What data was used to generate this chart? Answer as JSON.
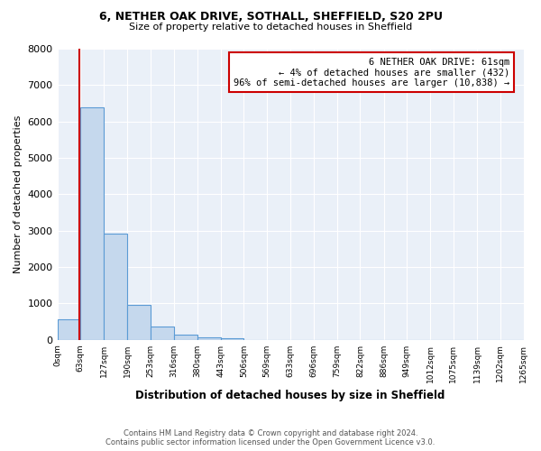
{
  "title": "6, NETHER OAK DRIVE, SOTHALL, SHEFFIELD, S20 2PU",
  "subtitle": "Size of property relative to detached houses in Sheffield",
  "xlabel": "Distribution of detached houses by size in Sheffield",
  "ylabel": "Number of detached properties",
  "bin_edges": [
    0,
    63,
    127,
    190,
    253,
    316,
    380,
    443,
    506,
    569,
    633,
    696,
    759,
    822,
    886,
    949,
    1012,
    1075,
    1139,
    1202,
    1265
  ],
  "bin_labels": [
    "0sqm",
    "63sqm",
    "127sqm",
    "190sqm",
    "253sqm",
    "316sqm",
    "380sqm",
    "443sqm",
    "506sqm",
    "569sqm",
    "633sqm",
    "696sqm",
    "759sqm",
    "822sqm",
    "886sqm",
    "949sqm",
    "1012sqm",
    "1075sqm",
    "1139sqm",
    "1202sqm",
    "1265sqm"
  ],
  "bar_values": [
    550,
    6400,
    2920,
    970,
    370,
    150,
    75,
    50,
    0,
    0,
    0,
    0,
    0,
    0,
    0,
    0,
    0,
    0,
    0,
    0
  ],
  "bar_color": "#c5d8ed",
  "bar_edge_color": "#5b9bd5",
  "property_line_x": 61,
  "property_line_color": "#cc0000",
  "annotation_box_color": "#cc0000",
  "annotation_text_line1": "6 NETHER OAK DRIVE: 61sqm",
  "annotation_text_line2": "← 4% of detached houses are smaller (432)",
  "annotation_text_line3": "96% of semi-detached houses are larger (10,838) →",
  "ylim": [
    0,
    8000
  ],
  "yticks": [
    0,
    1000,
    2000,
    3000,
    4000,
    5000,
    6000,
    7000,
    8000
  ],
  "bg_color": "#eaf0f8",
  "footer_line1": "Contains HM Land Registry data © Crown copyright and database right 2024.",
  "footer_line2": "Contains public sector information licensed under the Open Government Licence v3.0."
}
